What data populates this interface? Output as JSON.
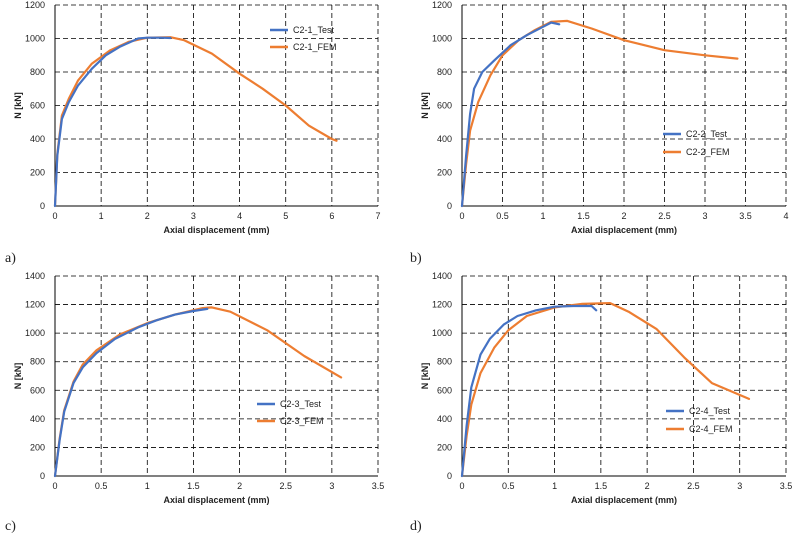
{
  "colors": {
    "test": "#4472c4",
    "fem": "#ed7d31",
    "grid": "#000000"
  },
  "chart_data": [
    {
      "type": "line",
      "panel_label": "a)",
      "xlabel": "Axial displacement (mm)",
      "ylabel": "N [kN]",
      "xlim": [
        0,
        7
      ],
      "ylim": [
        0,
        1200
      ],
      "xticks": [
        0,
        1,
        2,
        3,
        4,
        5,
        6,
        7
      ],
      "yticks": [
        0,
        200,
        400,
        600,
        800,
        1000,
        1200
      ],
      "grid": true,
      "legend_position": "top-right",
      "series": [
        {
          "name": "C2-1_Test",
          "color": "#4472c4",
          "points": [
            [
              0,
              0
            ],
            [
              0.05,
              300
            ],
            [
              0.15,
              520
            ],
            [
              0.3,
              620
            ],
            [
              0.5,
              720
            ],
            [
              0.8,
              820
            ],
            [
              1.1,
              900
            ],
            [
              1.4,
              950
            ],
            [
              1.8,
              1000
            ],
            [
              2.0,
              1005
            ],
            [
              2.3,
              1005
            ],
            [
              2.5,
              1003
            ]
          ]
        },
        {
          "name": "C2-1_FEM",
          "color": "#ed7d31",
          "points": [
            [
              0,
              0
            ],
            [
              0.05,
              310
            ],
            [
              0.15,
              540
            ],
            [
              0.3,
              640
            ],
            [
              0.5,
              750
            ],
            [
              0.8,
              850
            ],
            [
              1.2,
              930
            ],
            [
              1.6,
              980
            ],
            [
              2.0,
              1005
            ],
            [
              2.5,
              1008
            ],
            [
              2.8,
              990
            ],
            [
              3.4,
              910
            ],
            [
              4.0,
              790
            ],
            [
              4.5,
              700
            ],
            [
              5.0,
              600
            ],
            [
              5.5,
              480
            ],
            [
              6.0,
              400
            ],
            [
              6.1,
              390
            ]
          ]
        }
      ]
    },
    {
      "type": "line",
      "panel_label": "b)",
      "xlabel": "Axial displacement (mm)",
      "ylabel": "N [kN]",
      "xlim": [
        0,
        4
      ],
      "ylim": [
        0,
        1200
      ],
      "xticks": [
        0,
        0.5,
        1,
        1.5,
        2,
        2.5,
        3,
        3.5,
        4
      ],
      "xtick_labels": [
        "0",
        "0.5",
        "1",
        "1.5",
        "2",
        "2.5",
        "3",
        "3.5",
        "4"
      ],
      "yticks": [
        0,
        200,
        400,
        600,
        800,
        1000,
        1200
      ],
      "grid": true,
      "legend_position": "bottom-right",
      "series": [
        {
          "name": "C2-2_Test",
          "color": "#4472c4",
          "points": [
            [
              0,
              0
            ],
            [
              0.05,
              300
            ],
            [
              0.1,
              550
            ],
            [
              0.15,
              700
            ],
            [
              0.25,
              800
            ],
            [
              0.4,
              870
            ],
            [
              0.6,
              960
            ],
            [
              0.8,
              1020
            ],
            [
              1.0,
              1070
            ],
            [
              1.1,
              1095
            ],
            [
              1.2,
              1085
            ]
          ]
        },
        {
          "name": "C2-2_FEM",
          "color": "#ed7d31",
          "points": [
            [
              0,
              0
            ],
            [
              0.05,
              250
            ],
            [
              0.1,
              450
            ],
            [
              0.2,
              620
            ],
            [
              0.35,
              780
            ],
            [
              0.5,
              900
            ],
            [
              0.7,
              990
            ],
            [
              0.9,
              1050
            ],
            [
              1.1,
              1100
            ],
            [
              1.3,
              1105
            ],
            [
              1.6,
              1060
            ],
            [
              2.0,
              990
            ],
            [
              2.5,
              930
            ],
            [
              3.0,
              900
            ],
            [
              3.4,
              880
            ]
          ]
        }
      ]
    },
    {
      "type": "line",
      "panel_label": "c)",
      "xlabel": "Axial displacement (mm)",
      "ylabel": "N [kN]",
      "xlim": [
        0,
        3.5
      ],
      "ylim": [
        0,
        1400
      ],
      "xticks": [
        0,
        0.5,
        1,
        1.5,
        2,
        2.5,
        3,
        3.5
      ],
      "xtick_labels": [
        "0",
        "0.5",
        "1",
        "1.5",
        "2",
        "2.5",
        "3",
        "3.5"
      ],
      "yticks": [
        0,
        200,
        400,
        600,
        800,
        1000,
        1200,
        1400
      ],
      "grid": true,
      "legend_position": "bottom-right",
      "series": [
        {
          "name": "C2-3_Test",
          "color": "#4472c4",
          "points": [
            [
              0,
              0
            ],
            [
              0.05,
              250
            ],
            [
              0.1,
              450
            ],
            [
              0.2,
              650
            ],
            [
              0.3,
              760
            ],
            [
              0.45,
              860
            ],
            [
              0.65,
              960
            ],
            [
              0.9,
              1040
            ],
            [
              1.1,
              1090
            ],
            [
              1.3,
              1130
            ],
            [
              1.5,
              1155
            ],
            [
              1.65,
              1170
            ]
          ]
        },
        {
          "name": "C2-3_FEM",
          "color": "#ed7d31",
          "points": [
            [
              0,
              0
            ],
            [
              0.05,
              260
            ],
            [
              0.1,
              460
            ],
            [
              0.2,
              660
            ],
            [
              0.3,
              780
            ],
            [
              0.45,
              880
            ],
            [
              0.7,
              990
            ],
            [
              1.0,
              1070
            ],
            [
              1.3,
              1130
            ],
            [
              1.6,
              1175
            ],
            [
              1.7,
              1180
            ],
            [
              1.9,
              1150
            ],
            [
              2.3,
              1020
            ],
            [
              2.7,
              840
            ],
            [
              3.1,
              690
            ]
          ]
        }
      ]
    },
    {
      "type": "line",
      "panel_label": "d)",
      "xlabel": "Axial displacement (mm)",
      "ylabel": "N [kN]",
      "xlim": [
        0,
        3.5
      ],
      "ylim": [
        0,
        1400
      ],
      "xticks": [
        0,
        0.5,
        1,
        1.5,
        2,
        2.5,
        3,
        3.5
      ],
      "xtick_labels": [
        "0",
        "0.5",
        "1",
        "1.5",
        "2",
        "2.5",
        "3",
        "3.5"
      ],
      "yticks": [
        0,
        200,
        400,
        600,
        800,
        1000,
        1200,
        1400
      ],
      "grid": true,
      "legend_position": "bottom-right",
      "series": [
        {
          "name": "C2-4_Test",
          "color": "#4472c4",
          "points": [
            [
              0,
              0
            ],
            [
              0.05,
              350
            ],
            [
              0.1,
              620
            ],
            [
              0.2,
              850
            ],
            [
              0.3,
              960
            ],
            [
              0.45,
              1060
            ],
            [
              0.6,
              1120
            ],
            [
              0.8,
              1160
            ],
            [
              1.0,
              1185
            ],
            [
              1.2,
              1190
            ],
            [
              1.4,
              1190
            ],
            [
              1.45,
              1160
            ]
          ]
        },
        {
          "name": "C2-4_FEM",
          "color": "#ed7d31",
          "points": [
            [
              0,
              0
            ],
            [
              0.05,
              280
            ],
            [
              0.1,
              500
            ],
            [
              0.2,
              720
            ],
            [
              0.35,
              900
            ],
            [
              0.5,
              1020
            ],
            [
              0.7,
              1120
            ],
            [
              1.0,
              1180
            ],
            [
              1.3,
              1205
            ],
            [
              1.6,
              1210
            ],
            [
              1.8,
              1150
            ],
            [
              2.1,
              1030
            ],
            [
              2.4,
              830
            ],
            [
              2.7,
              650
            ],
            [
              3.1,
              540
            ]
          ]
        }
      ]
    }
  ]
}
